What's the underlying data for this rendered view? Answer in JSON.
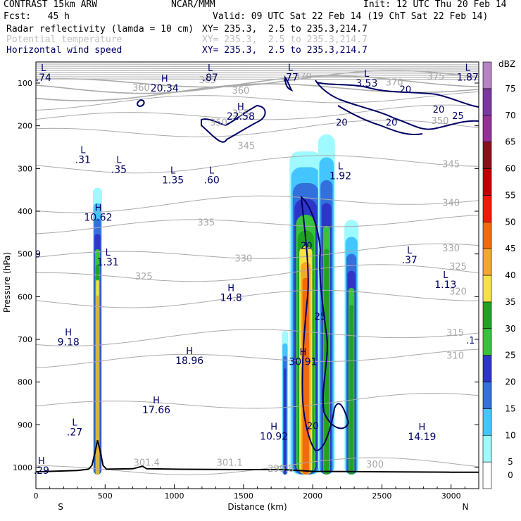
{
  "header": {
    "model": "CONTRAST 15km ARW",
    "center": "NCAR/MMM",
    "init": "Init: 12 UTC Thu 20 Feb 14",
    "fcst": "Fcst:   45 h",
    "valid": "Valid: 09 UTC Sat 22 Feb 14 (19 ChT Sat 22 Feb 14)",
    "field1": "Radar reflectivity (lamda = 10 cm)",
    "field1_xy": "XY= 235.3,  2.5 to 235.3,214.7",
    "field2": "Potential temperature",
    "field2_xy": "XY= 235.3,  2.5 to 235.3,214.7",
    "field3": "Horizontal wind speed",
    "field3_xy": "XY= 235.3,  2.5 to 235.3,214.7"
  },
  "colors": {
    "wind_contour": "#000066",
    "theta_contour": "#aaaaaa",
    "text_blue": "#000066"
  },
  "chart_data": {
    "type": "heatmap",
    "title": "Radar reflectivity (lamda = 10 cm)",
    "xlabel": "Distance (km)",
    "ylabel": "Pressure (hPa)",
    "xlim": [
      0,
      3200
    ],
    "ylim": [
      1050,
      70
    ],
    "x_ticks": [
      "0",
      "500",
      "1000",
      "1500",
      "2000",
      "2500",
      "3000"
    ],
    "x_tick_values": [
      0,
      500,
      1000,
      1500,
      2000,
      2500,
      3000
    ],
    "y_ticks": [
      "100",
      "200",
      "300",
      "400",
      "500",
      "600",
      "700",
      "800",
      "900",
      "1000"
    ],
    "y_tick_values": [
      100,
      200,
      300,
      400,
      500,
      600,
      700,
      800,
      900,
      1000
    ],
    "x_end_labels": {
      "left": "S",
      "right": "N"
    },
    "colorbar": {
      "unit": "dBZ",
      "levels": [
        "0",
        "5",
        "10",
        "15",
        "20",
        "25",
        "30",
        "35",
        "40",
        "45",
        "50",
        "55",
        "60",
        "65",
        "70",
        "75"
      ],
      "colors": [
        "#ffffff",
        "#9ffaff",
        "#43c6ff",
        "#3470dc",
        "#2e36c8",
        "#37c33a",
        "#21a321",
        "#f7e14b",
        "#f4a630",
        "#f26a10",
        "#ef1b05",
        "#c00000",
        "#8a0f18",
        "#962f96",
        "#7a37a4",
        "#b484c4"
      ]
    },
    "reflectivity_cells": [
      {
        "x": 445,
        "top": 345,
        "bottom": 1000,
        "max_dbz": 40
      },
      {
        "x": 1800,
        "top": 680,
        "bottom": 1000,
        "max_dbz": 20
      },
      {
        "x": 1950,
        "top": 260,
        "bottom": 1000,
        "max_dbz": 45
      },
      {
        "x": 2100,
        "top": 220,
        "bottom": 1000,
        "max_dbz": 30
      },
      {
        "x": 2280,
        "top": 420,
        "bottom": 1000,
        "max_dbz": 30
      }
    ],
    "theta_contour_labels": [
      {
        "text": "360",
        "x": 760,
        "p": 118
      },
      {
        "text": "365",
        "x": 1240,
        "p": 100
      },
      {
        "text": "370",
        "x": 1930,
        "p": 92
      },
      {
        "text": "375",
        "x": 2890,
        "p": 92
      },
      {
        "text": "360",
        "x": 1480,
        "p": 125
      },
      {
        "text": "370",
        "x": 2590,
        "p": 106
      },
      {
        "text": "355",
        "x": 1480,
        "p": 178
      },
      {
        "text": "350",
        "x": 2920,
        "p": 196
      },
      {
        "text": "350",
        "x": 1320,
        "p": 200
      },
      {
        "text": "345",
        "x": 1520,
        "p": 254
      },
      {
        "text": "345",
        "x": 3000,
        "p": 297
      },
      {
        "text": "340",
        "x": 3000,
        "p": 388
      },
      {
        "text": "335",
        "x": 1230,
        "p": 434
      },
      {
        "text": "330",
        "x": 1500,
        "p": 518
      },
      {
        "text": "330",
        "x": 3000,
        "p": 494
      },
      {
        "text": "325",
        "x": 780,
        "p": 560
      },
      {
        "text": "325",
        "x": 3050,
        "p": 537
      },
      {
        "text": "320",
        "x": 3050,
        "p": 595
      },
      {
        "text": "315",
        "x": 3030,
        "p": 692
      },
      {
        "text": "310",
        "x": 3030,
        "p": 745
      },
      {
        "text": "301.4",
        "x": 800,
        "p": 996
      },
      {
        "text": "301.1",
        "x": 1400,
        "p": 996
      },
      {
        "text": "299.8",
        "x": 1770,
        "p": 1010
      },
      {
        "text": "300",
        "x": 2450,
        "p": 1000
      }
    ],
    "wind_contour_labels": [
      {
        "text": "20",
        "x": 2670,
        "p": 122
      },
      {
        "text": "20",
        "x": 2910,
        "p": 169
      },
      {
        "text": "25",
        "x": 3050,
        "p": 184
      },
      {
        "text": "20",
        "x": 2210,
        "p": 200
      },
      {
        "text": "20",
        "x": 2570,
        "p": 200
      },
      {
        "text": "20",
        "x": 1955,
        "p": 488
      },
      {
        "text": "25",
        "x": 2055,
        "p": 654
      },
      {
        "text": "20",
        "x": 2000,
        "p": 910
      }
    ],
    "wind_extrema": [
      {
        "type": "L",
        "value": ".74",
        "x": 55,
        "p": 95
      },
      {
        "type": "L",
        "value": ".87",
        "x": 1260,
        "p": 95
      },
      {
        "type": "L",
        "value": ".77",
        "x": 1840,
        "p": 94
      },
      {
        "type": "L",
        "value": "1.87",
        "x": 3120,
        "p": 94
      },
      {
        "type": "H",
        "value": "20.34",
        "x": 930,
        "p": 120
      },
      {
        "type": "L",
        "value": "3.53",
        "x": 2390,
        "p": 108
      },
      {
        "type": "H",
        "value": "22.58",
        "x": 1480,
        "p": 186
      },
      {
        "type": "L",
        "value": ".31",
        "x": 340,
        "p": 287
      },
      {
        "type": "L",
        "value": ".35",
        "x": 600,
        "p": 310
      },
      {
        "type": "L",
        "value": "1.35",
        "x": 990,
        "p": 335
      },
      {
        "type": "L",
        "value": ".60",
        "x": 1270,
        "p": 335
      },
      {
        "type": "L",
        "value": "1.92",
        "x": 2200,
        "p": 325
      },
      {
        "type": "H",
        "value": "10.62",
        "x": 450,
        "p": 422
      },
      {
        "type": "L",
        "value": "1.31",
        "x": 520,
        "p": 527
      },
      {
        "type": "L",
        "value": ".37",
        "x": 2700,
        "p": 522
      },
      {
        "type": "L",
        "value": "1.13",
        "x": 2960,
        "p": 580
      },
      {
        "type": "H",
        "value": "14.8",
        "x": 1410,
        "p": 610
      },
      {
        "type": "H",
        "value": "9.18",
        "x": 235,
        "p": 714
      },
      {
        "type": "H",
        "value": "18.96",
        "x": 1110,
        "p": 758
      },
      {
        "type": "H",
        "value": "30.91",
        "x": 1930,
        "p": 760
      },
      {
        "type": "H",
        "value": "17.66",
        "x": 870,
        "p": 873
      },
      {
        "type": "L",
        "value": ".27",
        "x": 280,
        "p": 925
      },
      {
        "type": "H",
        "value": "10.92",
        "x": 1720,
        "p": 935
      },
      {
        "type": "H",
        "value": "14.19",
        "x": 2790,
        "p": 936
      },
      {
        "type": "H",
        "value": ".29",
        "x": 40,
        "p": 1015
      }
    ],
    "edge_partial_labels": [
      {
        "text": "9",
        "x": 15,
        "p": 508
      },
      {
        "text": ".1",
        "x": 3140,
        "p": 710
      }
    ],
    "terrain": [
      [
        0,
        1010
      ],
      [
        100,
        1009
      ],
      [
        200,
        1008
      ],
      [
        300,
        1007
      ],
      [
        380,
        1004
      ],
      [
        405,
        995
      ],
      [
        425,
        968
      ],
      [
        445,
        936
      ],
      [
        465,
        962
      ],
      [
        485,
        995
      ],
      [
        510,
        1004
      ],
      [
        700,
        1003
      ],
      [
        770,
        997
      ],
      [
        800,
        1003
      ],
      [
        1000,
        1004
      ],
      [
        1500,
        1005
      ],
      [
        1780,
        1005
      ],
      [
        1900,
        1007
      ],
      [
        2000,
        1009
      ],
      [
        2500,
        1010
      ],
      [
        3000,
        1011
      ],
      [
        3200,
        1011
      ]
    ]
  }
}
